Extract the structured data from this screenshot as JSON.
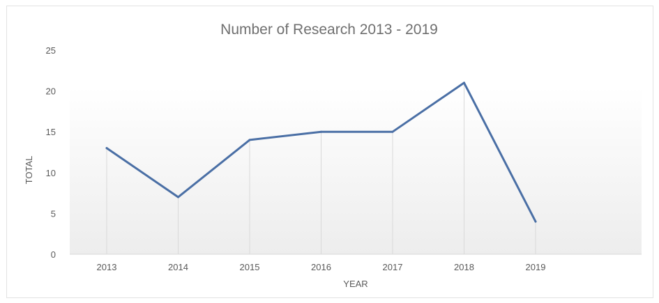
{
  "chart_data": {
    "type": "line",
    "title": "Number of Research 2013 - 2019",
    "xlabel": "YEAR",
    "ylabel": "TOTAL",
    "categories": [
      "2013",
      "2014",
      "2015",
      "2016",
      "2017",
      "2018",
      "2019"
    ],
    "series": [
      {
        "values": [
          13,
          7,
          14,
          15,
          15,
          21,
          4
        ],
        "color": "#4a6fa5"
      }
    ],
    "ylim": [
      0,
      25
    ],
    "yticks": [
      "0",
      "5",
      "10",
      "15",
      "20",
      "25"
    ],
    "grid": "vertical-category-lines",
    "plot_background": "light-gray-gradient"
  }
}
